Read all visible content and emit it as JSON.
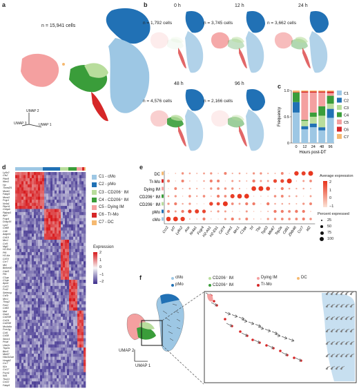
{
  "panels": {
    "a": {
      "letter": "a",
      "cell_count": "n = 15,941 cells",
      "umap_x": "UMAP 1",
      "umap_y": "UMAP 2",
      "umap_z": "UMAP 3"
    },
    "b": {
      "letter": "b",
      "timepoints": [
        {
          "time": "0 h",
          "count": "n = 1,792 cells"
        },
        {
          "time": "12 h",
          "count": "n = 3,745 cells"
        },
        {
          "time": "24 h",
          "count": "n = 3,662 cells"
        },
        {
          "time": "48 h",
          "count": "n = 4,576 cells"
        },
        {
          "time": "96 h",
          "count": "n = 2,166 cells"
        }
      ]
    },
    "c": {
      "letter": "c"
    },
    "d": {
      "letter": "d",
      "legend": [
        {
          "label": "C1 - cMo",
          "color": "#9dc7e4"
        },
        {
          "label": "C2 - pMo",
          "color": "#2171b5"
        },
        {
          "label": "C3 - CD206⁻ IM",
          "color": "#b8dd9c"
        },
        {
          "label": "C4 - CD206⁺ IM",
          "color": "#3a9d3a"
        },
        {
          "label": "C5 - Dying IM",
          "color": "#f4a0a0"
        },
        {
          "label": "C6 - Tr-Mo",
          "color": "#d62728"
        },
        {
          "label": "C7 - DC",
          "color": "#f5b971"
        }
      ],
      "expression_title": "Expression",
      "expression_ticks": [
        "2",
        "1",
        "0",
        "−1",
        "−2"
      ],
      "genes": [
        "Ly6c2",
        "Cfs2",
        "Plac8",
        "Ifitm3",
        "Hp",
        "Tmed25",
        "Msrd1",
        "Fabp5",
        "Msra3",
        "Fcgr1",
        "Nr4a1",
        "Ptprh1",
        "Cebpb",
        "Pglyrp1",
        "Aprt",
        "Fcgr4",
        "Dusp16",
        "Lyz2",
        "Cd68",
        "Cd6",
        "Adgre1",
        "Cd19",
        "Mrc1",
        "Ccl9",
        "Mgl2",
        "H2-Eb1",
        "Pf4",
        "H2-Aa",
        "Cd74",
        "Ccr7",
        "Mt1",
        "Bhlhe40",
        "Cdcf1",
        "Pf4",
        "C1qa",
        "C1qb",
        "Apoe",
        "Cd72",
        "Fcrl2",
        "Selenop",
        "Csf1r",
        "Mrc1",
        "Timp2",
        "Folr2",
        "Cd63",
        "Maf",
        "Gas6",
        "Cd209f",
        "Ccl24",
        "Cd209f",
        "Ms4a6a",
        "Fcer1g",
        "Ccl6",
        "Cd38",
        "Stmn1",
        "Pclaf",
        "Ube2c",
        "Top2a",
        "Birc5",
        "Mki67",
        "Hist1h2ae",
        "Hmgb2",
        "Ccr7",
        "Il1b",
        "Ccl17",
        "Fscn1",
        "Il4i1",
        "Tbx21",
        "Ccl22",
        "Fabp5"
      ]
    },
    "e": {
      "letter": "e",
      "rows": [
        "DC",
        "Tr-Mo",
        "Dying IM",
        "CD206⁺ IM",
        "CD206⁻ IM",
        "pMo",
        "cMo"
      ],
      "genes": [
        "Ccr2",
        "Irf7",
        "Ly6c2",
        "Ace",
        "Nr4a1",
        "Fcgr4",
        "H2-Ab1",
        "H2-Eb1",
        "Cd74",
        "Lyve1",
        "Mrc1",
        "C1qa",
        "Trf",
        "Tbs",
        "Trp53",
        "Mki67",
        "Top2a",
        "Cd81",
        "Zbtb46",
        "Ccr7",
        "Id2"
      ],
      "avg_expr_title": "Average expression",
      "avg_expr_ticks": [
        "2",
        "1",
        "0",
        "−1"
      ],
      "pct_title": "Percent expressed",
      "pct_ticks": [
        "25",
        "50",
        "75",
        "100"
      ]
    },
    "f": {
      "letter": "f",
      "legend": [
        {
          "label": "cMo",
          "color": "#9dc7e4"
        },
        {
          "label": "CD206⁻ IM",
          "color": "#b8dd9c"
        },
        {
          "label": "Dying IM",
          "color": "#f4a0a0"
        },
        {
          "label": "DC",
          "color": "#f5b971"
        },
        {
          "label": "pMo",
          "color": "#2171b5"
        },
        {
          "label": "CD206⁺ IM",
          "color": "#3a9d3a"
        },
        {
          "label": "Tr-Mo",
          "color": "#d62728"
        }
      ],
      "umap_y": "UMAP 2",
      "umap_x": "UMAP 1"
    }
  },
  "chart_data": {
    "type": "bar",
    "stacked": true,
    "categories": [
      "0",
      "12",
      "24",
      "48",
      "96"
    ],
    "xlabel": "Hours post-DT",
    "ylabel": "Frequency",
    "ylim": [
      0,
      1
    ],
    "yticks": [
      "0",
      "0.5",
      "1.0"
    ],
    "series": [
      {
        "name": "C1",
        "color": "#9dc7e4",
        "values": [
          0.58,
          0.26,
          0.3,
          0.24,
          0.48
        ]
      },
      {
        "name": "C2",
        "color": "#2171b5",
        "values": [
          0.2,
          0.06,
          0.07,
          0.06,
          0.17
        ]
      },
      {
        "name": "C3",
        "color": "#b8dd9c",
        "values": [
          0.0,
          0.1,
          0.13,
          0.22,
          0.1
        ]
      },
      {
        "name": "C4",
        "color": "#3a9d3a",
        "values": [
          0.18,
          0.02,
          0.08,
          0.18,
          0.15
        ]
      },
      {
        "name": "C5",
        "color": "#f4a0a0",
        "values": [
          0.0,
          0.52,
          0.38,
          0.26,
          0.05
        ]
      },
      {
        "name": "C6",
        "color": "#d62728",
        "values": [
          0.01,
          0.02,
          0.02,
          0.02,
          0.03
        ]
      },
      {
        "name": "C7",
        "color": "#f5b971",
        "values": [
          0.03,
          0.02,
          0.02,
          0.02,
          0.02
        ]
      }
    ]
  }
}
